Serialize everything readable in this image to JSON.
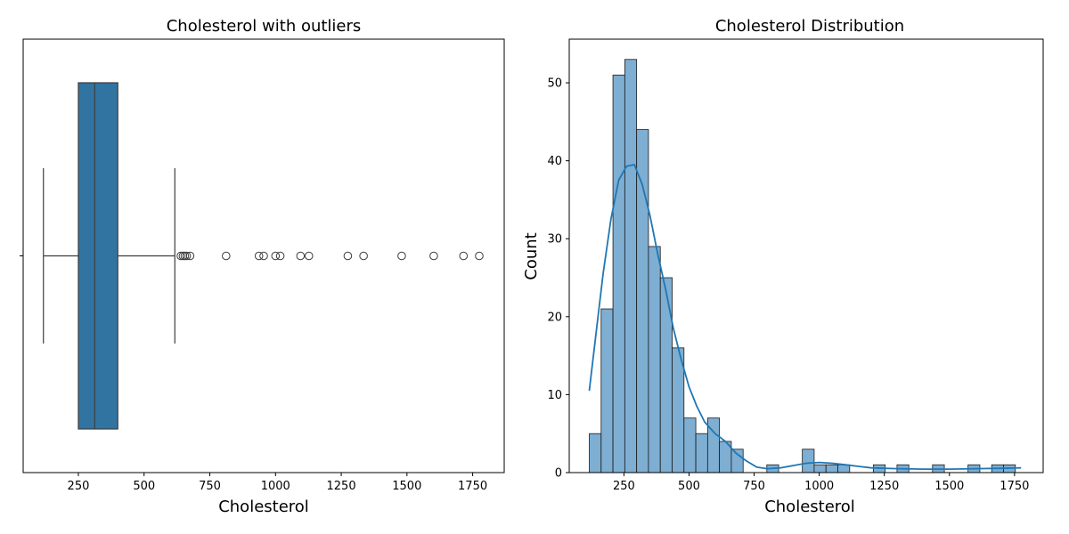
{
  "colors": {
    "box": "#3274a1",
    "box_edge": "#3d3d3d",
    "bar": "#7eaed2",
    "bar_edge": "#1a1a1a",
    "kde": "#1f77b4"
  },
  "chart_data": [
    {
      "type": "box",
      "title": "Cholesterol with outliers",
      "xlabel": "Cholesterol",
      "ylabel": "",
      "xlim": [
        40,
        1870
      ],
      "xticks": [
        250,
        500,
        750,
        1000,
        1250,
        1500,
        1750
      ],
      "grid": false,
      "stats": {
        "whisker_low": 117,
        "q1": 250,
        "median": 312,
        "q3": 400,
        "whisker_high": 617
      },
      "outliers": [
        640,
        648,
        655,
        662,
        675,
        812,
        937,
        955,
        1000,
        1018,
        1095,
        1127,
        1275,
        1335,
        1480,
        1602,
        1715,
        1775
      ]
    },
    {
      "type": "histogram",
      "title": "Cholesterol Distribution",
      "xlabel": "Cholesterol",
      "ylabel": "Count",
      "xlim": [
        40,
        1860
      ],
      "ylim": [
        0,
        55.6
      ],
      "xticks": [
        250,
        500,
        750,
        1000,
        1250,
        1500,
        1750
      ],
      "yticks": [
        0,
        10,
        20,
        30,
        40,
        50
      ],
      "grid": false,
      "bin_start": 117,
      "bin_width": 45.45,
      "counts": [
        5,
        21,
        51,
        53,
        44,
        29,
        25,
        16,
        7,
        5,
        7,
        4,
        3,
        0,
        0,
        1,
        0,
        0,
        3,
        1,
        1,
        1,
        0,
        0,
        1,
        0,
        1,
        0,
        0,
        1,
        0,
        0,
        1,
        0,
        1,
        1
      ],
      "kde": {
        "x": [
          117,
          140,
          170,
          200,
          230,
          260,
          290,
          320,
          350,
          380,
          410,
          440,
          470,
          500,
          530,
          560,
          600,
          640,
          680,
          720,
          760,
          800,
          850,
          900,
          950,
          1000,
          1050,
          1100,
          1150,
          1200,
          1250,
          1300,
          1400,
          1500,
          1600,
          1700,
          1775
        ],
        "y": [
          10.5,
          17,
          25.5,
          32.5,
          37.5,
          39.3,
          39.5,
          37,
          33,
          28,
          23.5,
          18.5,
          14.5,
          11,
          8.5,
          6.5,
          5,
          4,
          2.5,
          1.5,
          0.7,
          0.5,
          0.6,
          0.9,
          1.2,
          1.3,
          1.2,
          1.0,
          0.8,
          0.6,
          0.55,
          0.5,
          0.45,
          0.45,
          0.5,
          0.55,
          0.6
        ]
      }
    }
  ]
}
